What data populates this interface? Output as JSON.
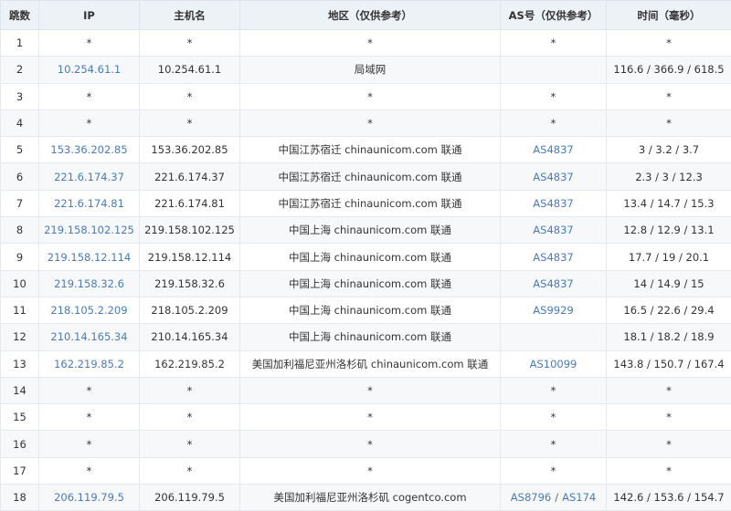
{
  "table": {
    "headers": [
      "跳数",
      "IP",
      "主机名",
      "地区（仅供参考）",
      "AS号（仅供参考）",
      "时间（毫秒）"
    ],
    "as_separator": "/",
    "rows": [
      {
        "hop": 1,
        "ip": "*",
        "host": "*",
        "region": "*",
        "as": [
          "*"
        ],
        "time": "*"
      },
      {
        "hop": 2,
        "ip": "10.254.61.1",
        "host": "10.254.61.1",
        "region": "局域网",
        "as": null,
        "time": "116.6 / 366.9 / 618.5"
      },
      {
        "hop": 3,
        "ip": "*",
        "host": "*",
        "region": "*",
        "as": [
          "*"
        ],
        "time": "*"
      },
      {
        "hop": 4,
        "ip": "*",
        "host": "*",
        "region": "*",
        "as": [
          "*"
        ],
        "time": "*"
      },
      {
        "hop": 5,
        "ip": "153.36.202.85",
        "host": "153.36.202.85",
        "region": "中国江苏宿迁 chinaunicom.com 联通",
        "as": [
          "AS4837"
        ],
        "time": "3 / 3.2 / 3.7"
      },
      {
        "hop": 6,
        "ip": "221.6.174.37",
        "host": "221.6.174.37",
        "region": "中国江苏宿迁 chinaunicom.com 联通",
        "as": [
          "AS4837"
        ],
        "time": "2.3 / 3 / 12.3"
      },
      {
        "hop": 7,
        "ip": "221.6.174.81",
        "host": "221.6.174.81",
        "region": "中国江苏宿迁 chinaunicom.com 联通",
        "as": [
          "AS4837"
        ],
        "time": "13.4 / 14.7 / 15.3"
      },
      {
        "hop": 8,
        "ip": "219.158.102.125",
        "host": "219.158.102.125",
        "region": "中国上海 chinaunicom.com 联通",
        "as": [
          "AS4837"
        ],
        "time": "12.8 / 12.9 / 13.1"
      },
      {
        "hop": 9,
        "ip": "219.158.12.114",
        "host": "219.158.12.114",
        "region": "中国上海 chinaunicom.com 联通",
        "as": [
          "AS4837"
        ],
        "time": "17.7 / 19 / 20.1"
      },
      {
        "hop": 10,
        "ip": "219.158.32.6",
        "host": "219.158.32.6",
        "region": "中国上海 chinaunicom.com 联通",
        "as": [
          "AS4837"
        ],
        "time": "14 / 14.9 / 15"
      },
      {
        "hop": 11,
        "ip": "218.105.2.209",
        "host": "218.105.2.209",
        "region": "中国上海 chinaunicom.com 联通",
        "as": [
          "AS9929"
        ],
        "time": "16.5 / 22.6 / 29.4"
      },
      {
        "hop": 12,
        "ip": "210.14.165.34",
        "host": "210.14.165.34",
        "region": "中国上海 chinaunicom.com 联通",
        "as": null,
        "time": "18.1 / 18.2 / 18.9"
      },
      {
        "hop": 13,
        "ip": "162.219.85.2",
        "host": "162.219.85.2",
        "region": "美国加利福尼亚州洛杉矶 chinaunicom.com 联通",
        "as": [
          "AS10099"
        ],
        "time": "143.8 / 150.7 / 167.4"
      },
      {
        "hop": 14,
        "ip": "*",
        "host": "*",
        "region": "*",
        "as": [
          "*"
        ],
        "time": "*"
      },
      {
        "hop": 15,
        "ip": "*",
        "host": "*",
        "region": "*",
        "as": [
          "*"
        ],
        "time": "*"
      },
      {
        "hop": 16,
        "ip": "*",
        "host": "*",
        "region": "*",
        "as": [
          "*"
        ],
        "time": "*"
      },
      {
        "hop": 17,
        "ip": "*",
        "host": "*",
        "region": "*",
        "as": [
          "*"
        ],
        "time": "*"
      },
      {
        "hop": 18,
        "ip": "206.119.79.5",
        "host": "206.119.79.5",
        "region": "美国加利福尼亚州洛杉矶 cogentco.com",
        "as": [
          "AS8796",
          "AS174"
        ],
        "time": "142.6 / 153.6 / 154.7"
      }
    ]
  }
}
